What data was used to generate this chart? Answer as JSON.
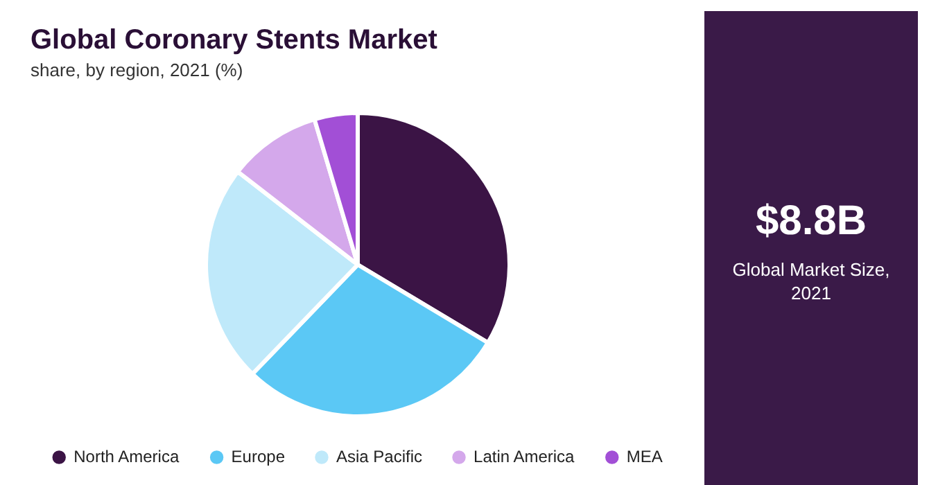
{
  "chart_data": [
    {
      "type": "pie",
      "title": "Global Coronary Stents Market",
      "subtitle": "share, by region, 2021 (%)",
      "categories": [
        "North America",
        "Europe",
        "Asia Pacific",
        "Latin America",
        "MEA"
      ],
      "values": [
        33.6,
        28.6,
        23.3,
        9.9,
        4.6
      ],
      "colors": [
        "#3b1445",
        "#5bc8f5",
        "#bfe9fa",
        "#d4a8eb",
        "#a24fd6"
      ],
      "legend": "bottom"
    },
    {
      "type": "other",
      "title": "$8.8B",
      "subtitle": "Global Market Size, 2021"
    }
  ]
}
